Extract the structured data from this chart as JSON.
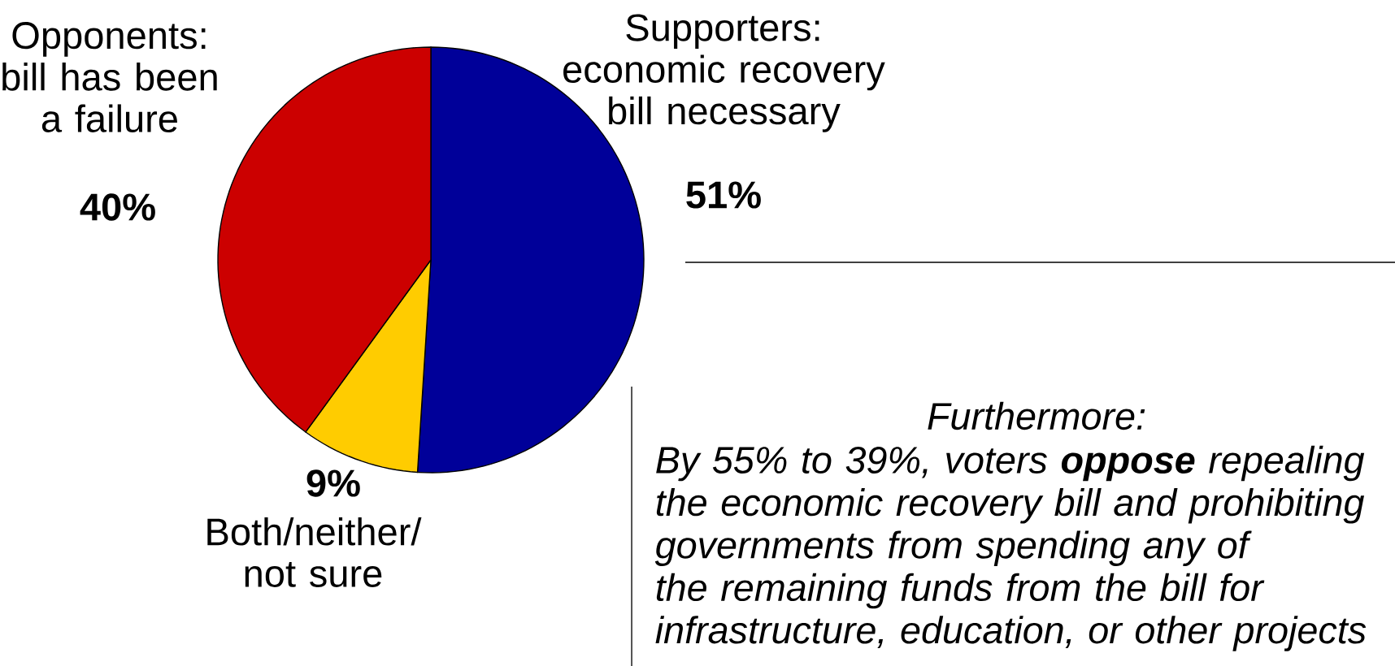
{
  "chart_data": {
    "type": "pie",
    "categories": [
      "Supporters: economic recovery bill necessary",
      "Both/neither/ not sure",
      "Opponents: bill has been a failure"
    ],
    "values": [
      51,
      9,
      40
    ],
    "colors": [
      "#000099",
      "#ffcc00",
      "#cc0000"
    ],
    "value_labels": [
      "51%",
      "9%",
      "40%"
    ],
    "annotations": [
      "Furthermore:",
      "By 55% to 39%, voters **oppose** repealing the economic recovery bill and prohibiting governments from spending any of the remaining funds from the bill for infrastructure, education, or other projects"
    ]
  }
}
